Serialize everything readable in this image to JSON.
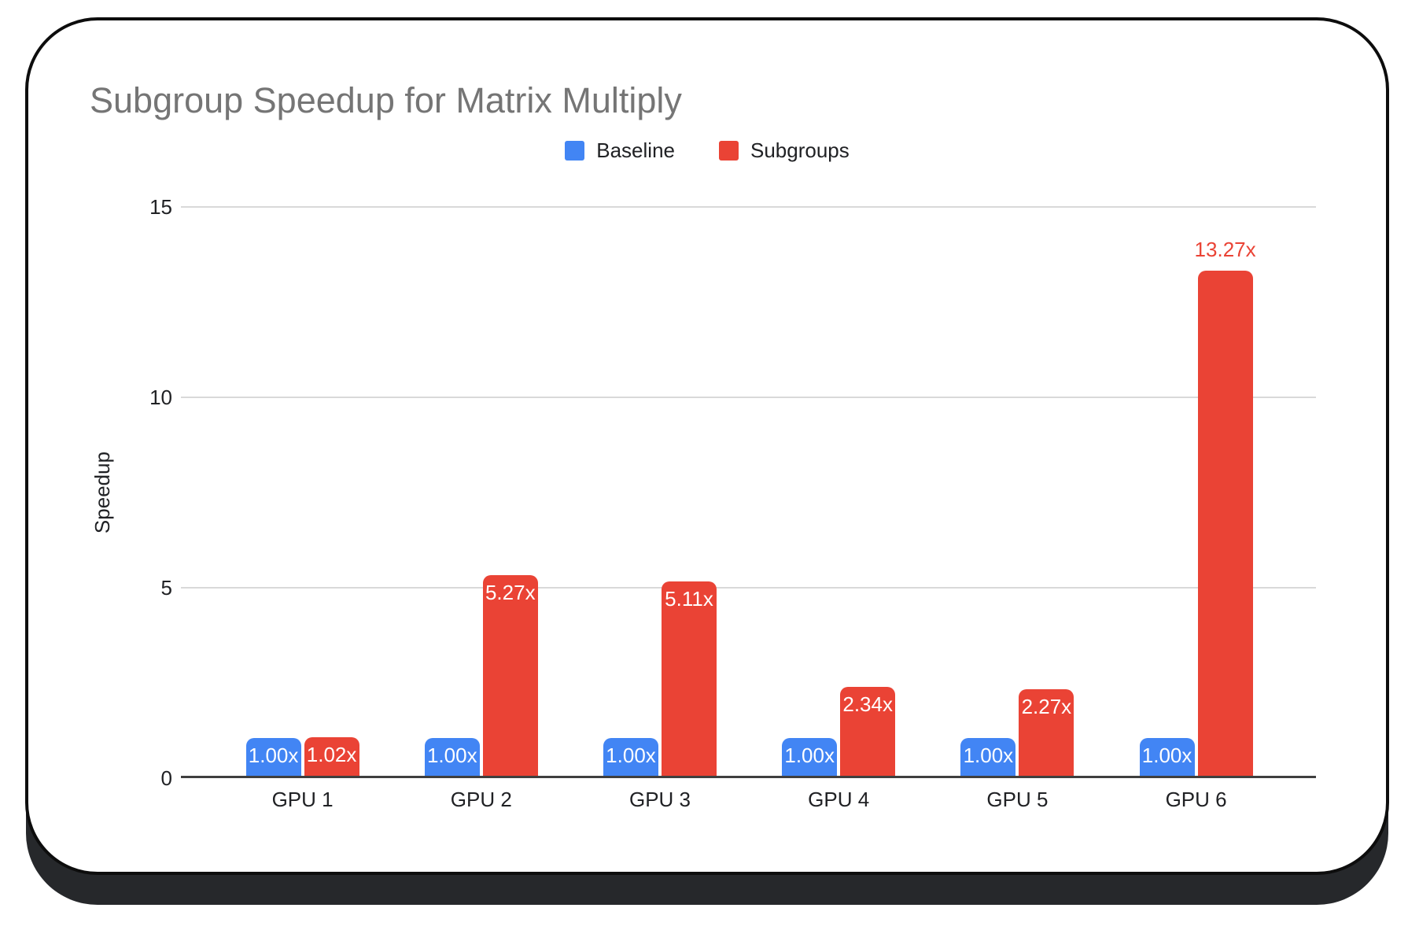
{
  "window": {
    "background": "#ffffff",
    "card_border_color": "#0d0d0d",
    "card_shadow_color": "#26282b"
  },
  "chart_data": {
    "type": "bar",
    "title": "Subgroup Speedup for Matrix Multiply",
    "title_color": "#757575",
    "categories": [
      "GPU 1",
      "GPU 2",
      "GPU 3",
      "GPU 4",
      "GPU 5",
      "GPU 6"
    ],
    "series": [
      {
        "name": "Baseline",
        "color": "#4285F4",
        "values": [
          1.0,
          1.0,
          1.0,
          1.0,
          1.0,
          1.0
        ],
        "labels": [
          "1.00x",
          "1.00x",
          "1.00x",
          "1.00x",
          "1.00x",
          "1.00x"
        ],
        "label_placement": [
          "inside",
          "inside",
          "inside",
          "inside",
          "inside",
          "inside"
        ]
      },
      {
        "name": "Subgroups",
        "color": "#EA4335",
        "values": [
          1.02,
          5.27,
          5.11,
          2.34,
          2.27,
          13.27
        ],
        "labels": [
          "1.02x",
          "5.27x",
          "5.11x",
          "2.34x",
          "2.27x",
          "13.27x"
        ],
        "label_placement": [
          "inside",
          "inside",
          "inside",
          "inside",
          "inside",
          "above"
        ]
      }
    ],
    "xlabel": "",
    "ylabel": "Speedup",
    "yticks": [
      0,
      5,
      10,
      15
    ],
    "ylim": [
      0,
      15
    ],
    "grid": true,
    "legend_position": "top",
    "value_label_color_inside": "#ffffff",
    "gridline_color": "#d9d9d9",
    "axis_line_color": "#3f3f3f",
    "tick_label_color": "#202124"
  }
}
